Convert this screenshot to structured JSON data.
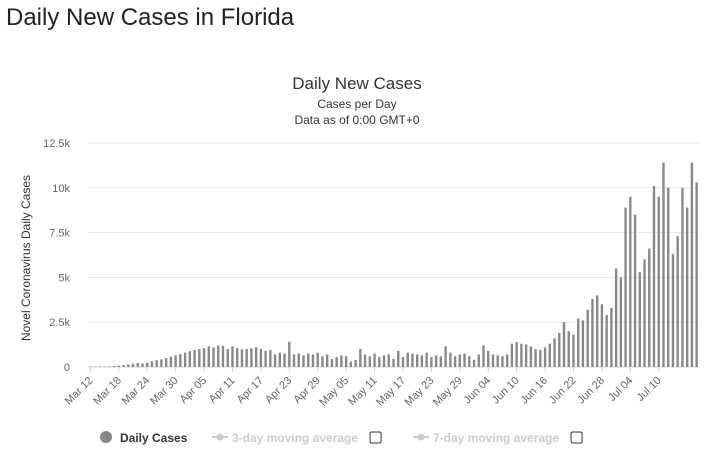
{
  "page": {
    "heading": "Daily New Cases in Florida"
  },
  "colors": {
    "bar": "#888888",
    "grid": "#e6e6e6",
    "axis": "#ccd6eb",
    "legend_active": "#333333",
    "legend_inactive": "#cccccc"
  },
  "legend": {
    "items": [
      {
        "label": "Daily Cases",
        "active": true,
        "checkbox": false
      },
      {
        "label": "3-day moving average",
        "active": false,
        "checkbox": true
      },
      {
        "label": "7-day moving average",
        "active": false,
        "checkbox": true
      }
    ]
  },
  "chart_data": {
    "type": "bar",
    "title": "Daily New Cases",
    "subtitle_lines": [
      "Cases per Day",
      "Data as of 0:00 GMT+0"
    ],
    "xlabel": "",
    "ylabel": "Novel Coronavirus Daily Cases",
    "ylim": [
      0,
      12500
    ],
    "yticks": [
      0,
      2500,
      5000,
      7500,
      10000,
      12500
    ],
    "ytick_labels": [
      "0",
      "2.5k",
      "5k",
      "7.5k",
      "10k",
      "12.5k"
    ],
    "grid": true,
    "legend_position": "bottom",
    "xtick_labels": [
      "Mar 12",
      "Mar 18",
      "Mar 24",
      "Mar 30",
      "Apr 05",
      "Apr 11",
      "Apr 17",
      "Apr 23",
      "Apr 29",
      "May 05",
      "May 11",
      "May 17",
      "May 23",
      "May 29",
      "Jun 04",
      "Jun 10",
      "Jun 16",
      "Jun 22",
      "Jun 28",
      "Jul 04",
      "Jul 10"
    ],
    "xtick_start": "Mar 12",
    "xtick_step_days": 6,
    "start_date": "Mar 12",
    "series": [
      {
        "name": "Daily Cases",
        "values": [
          15,
          20,
          30,
          25,
          40,
          60,
          70,
          110,
          140,
          180,
          220,
          200,
          240,
          320,
          380,
          420,
          500,
          580,
          650,
          720,
          800,
          880,
          950,
          1000,
          1050,
          1150,
          1100,
          1200,
          1180,
          1000,
          1150,
          1050,
          980,
          1000,
          1050,
          1100,
          1000,
          900,
          950,
          700,
          800,
          750,
          1400,
          700,
          750,
          650,
          750,
          700,
          800,
          600,
          700,
          450,
          550,
          650,
          600,
          300,
          400,
          1000,
          700,
          600,
          750,
          550,
          650,
          700,
          450,
          900,
          550,
          800,
          750,
          700,
          650,
          800,
          550,
          650,
          600,
          1150,
          800,
          600,
          700,
          750,
          600,
          400,
          700,
          1200,
          900,
          700,
          650,
          600,
          700,
          1300,
          1400,
          1300,
          1250,
          1150,
          1000,
          950,
          1100,
          1300,
          1600,
          1900,
          2500,
          2000,
          1800,
          2700,
          2600,
          3200,
          3800,
          4000,
          3500,
          2900,
          3300,
          5500,
          5000,
          8900,
          9500,
          8500,
          5300,
          6000,
          6600,
          10100,
          9500,
          11400,
          10000,
          6300,
          7300,
          10000,
          8900,
          11400,
          10300
        ]
      }
    ]
  }
}
